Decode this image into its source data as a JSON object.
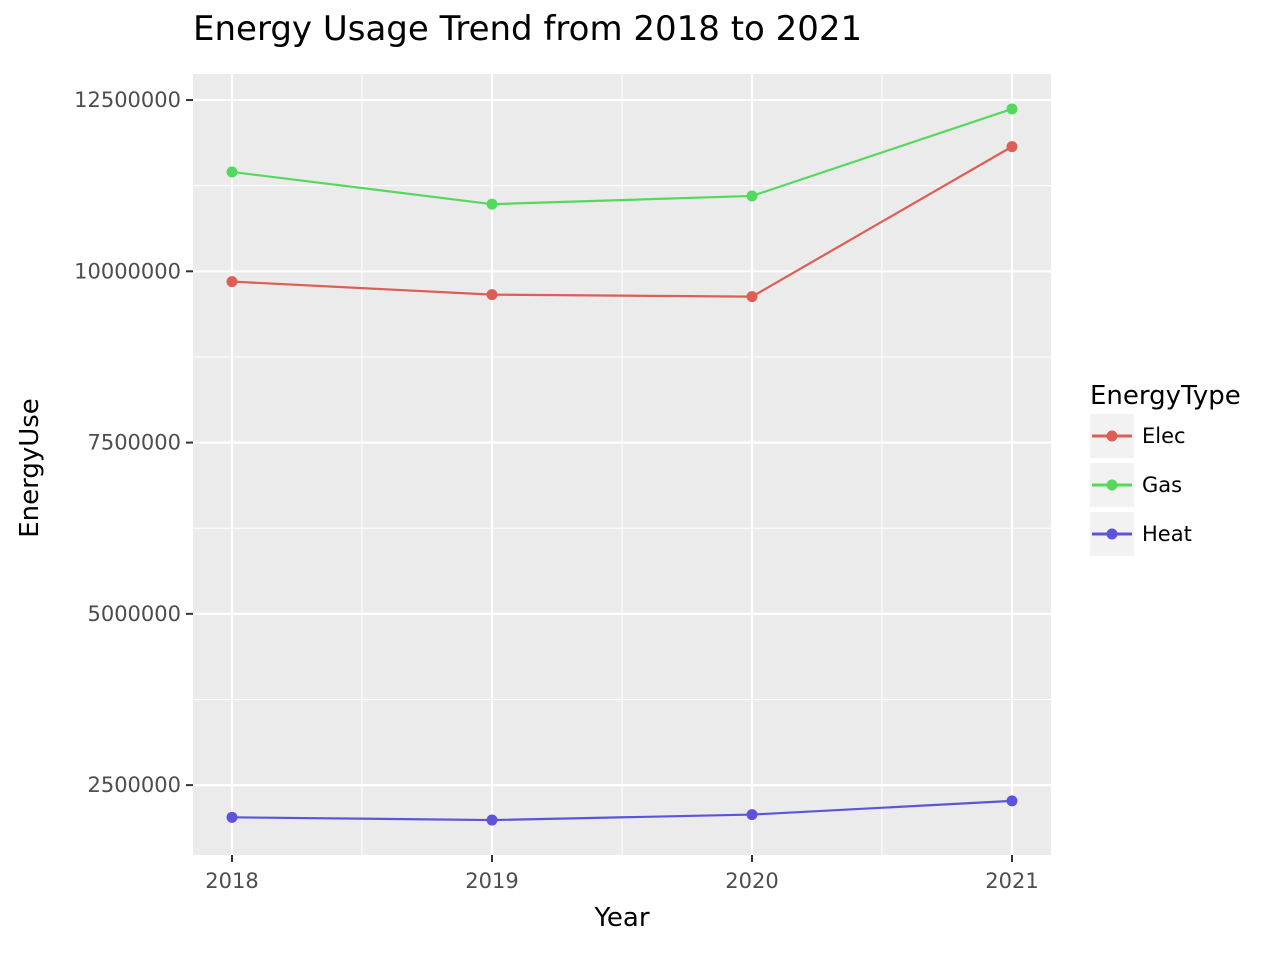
{
  "chart_data": {
    "type": "line",
    "title": "Energy Usage Trend from 2018 to 2021",
    "xlabel": "Year",
    "ylabel": "EnergyUse",
    "x": [
      2018,
      2019,
      2020,
      2021
    ],
    "x_tick_labels": [
      "2018",
      "2019",
      "2020",
      "2021"
    ],
    "xlim": [
      2017.85,
      2021.15
    ],
    "y_ticks": [
      2500000,
      5000000,
      7500000,
      10000000,
      12500000
    ],
    "y_tick_labels": [
      "2500000",
      "5000000",
      "7500000",
      "10000000",
      "12500000"
    ],
    "ylim": [
      1480000,
      12880000
    ],
    "grid": true,
    "legend": {
      "title": "EnergyType",
      "position": "right"
    },
    "series": [
      {
        "name": "Elec",
        "color": "#dc5e54",
        "values": [
          9850000,
          9660000,
          9630000,
          11820000
        ]
      },
      {
        "name": "Gas",
        "color": "#54d95e",
        "values": [
          11450000,
          10980000,
          11100000,
          12370000
        ]
      },
      {
        "name": "Heat",
        "color": "#5e54dc",
        "values": [
          2030000,
          1990000,
          2070000,
          2270000
        ]
      }
    ]
  }
}
